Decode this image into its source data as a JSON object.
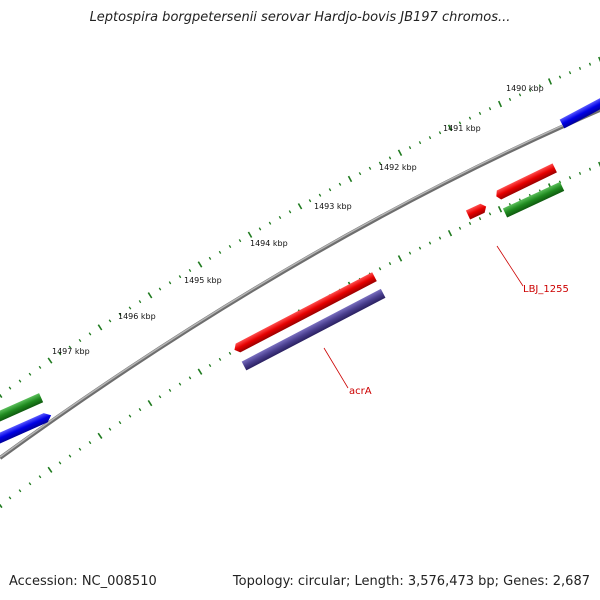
{
  "title": "Leptospira borgpetersenii serovar Hardjo-bovis JB197 chromos...",
  "footer": {
    "accession": "Accession: NC_008510",
    "summary": "Topology: circular; Length: 3,576,473 bp; Genes: 2,687"
  },
  "colors": {
    "backbone": "#8a8a8a",
    "ticks": "#1f7a1f",
    "feature_red": "#e60000",
    "feature_blue": "#0000e6",
    "feature_green": "#1f8a1f",
    "feature_purple": "#4a3f8f",
    "label": "#cc0000"
  },
  "tick_labels": [
    "1490 kbp",
    "1491 kbp",
    "1492 kbp",
    "1493 kbp",
    "1494 kbp",
    "1495 kbp",
    "1496 kbp",
    "1497 kbp"
  ],
  "gene_labels": {
    "lbj_1255": "LBJ_1255",
    "acra": "acrA"
  }
}
